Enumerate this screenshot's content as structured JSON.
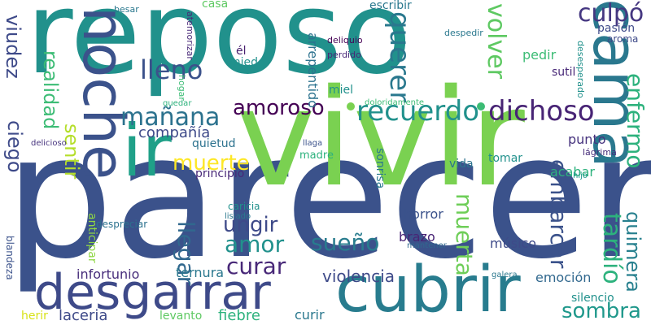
{
  "words": {
    "parecer": {
      "text": "parecer",
      "color": "#3b528b"
    },
    "vivir": {
      "text": "vivir",
      "color": "#7ad151"
    },
    "reposo": {
      "text": "reposo",
      "color": "#21918c"
    },
    "cubrir": {
      "text": "cubrir",
      "color": "#287c8e"
    },
    "cama": {
      "text": "cama",
      "color": "#2a788e"
    },
    "noche": {
      "text": "noche",
      "color": "#3b528b"
    },
    "desgarrar": {
      "text": "desgarrar",
      "color": "#3e4a89"
    },
    "ir": {
      "text": "ir",
      "color": "#1fa088"
    },
    "recuerdo": {
      "text": "recuerdo",
      "color": "#21918c"
    },
    "dichoso": {
      "text": "dichoso",
      "color": "#482475"
    },
    "amoroso": {
      "text": "amoroso",
      "color": "#440154"
    },
    "manana": {
      "text": "mañana",
      "color": "#2c728e"
    },
    "lleno": {
      "text": "lleno",
      "color": "#3b528b"
    },
    "culpo": {
      "text": "culpó",
      "color": "#453781"
    },
    "querer": {
      "text": "querer",
      "color": "#2a788e"
    },
    "volver": {
      "text": "volver",
      "color": "#5ec962"
    },
    "viudez": {
      "text": "viudez",
      "color": "#3e4a89"
    },
    "ciego": {
      "text": "ciego",
      "color": "#3e4a89"
    },
    "realidad": {
      "text": "realidad",
      "color": "#3cbc75"
    },
    "sentir": {
      "text": "sentir",
      "color": "#b5de2b"
    },
    "muerte": {
      "text": "muerte",
      "color": "#fde725"
    },
    "compania": {
      "text": "compañía",
      "color": "#3e4a89"
    },
    "enfermo": {
      "text": "enfermo",
      "color": "#2db27d"
    },
    "tardio": {
      "text": "tardío",
      "color": "#2db27d"
    },
    "embarcar": {
      "text": "embarcar",
      "color": "#3b528b"
    },
    "quimera": {
      "text": "quimera",
      "color": "#27808e"
    },
    "muerta": {
      "text": "muerta",
      "color": "#6ece58"
    },
    "llegar": {
      "text": "llegar",
      "color": "#31688e"
    },
    "ungir": {
      "text": "ungir",
      "color": "#3e4a89"
    },
    "amor": {
      "text": "amor",
      "color": "#21918c"
    },
    "sueno": {
      "text": "sueño",
      "color": "#287c8e"
    },
    "curar": {
      "text": "curar",
      "color": "#482878"
    },
    "sombra": {
      "text": "sombra",
      "color": "#1f988b"
    },
    "violencia": {
      "text": "violencia",
      "color": "#3e4a89"
    },
    "infortunio": {
      "text": "infortunio",
      "color": "#472d7b"
    },
    "ternura": {
      "text": "ternura",
      "color": "#2a788e"
    },
    "laceria": {
      "text": "laceria",
      "color": "#3e4a89"
    },
    "fiebre": {
      "text": "fiebre",
      "color": "#2db27d"
    },
    "curir": {
      "text": "curir",
      "color": "#2a788e"
    },
    "herir": {
      "text": "herir",
      "color": "#d8e219"
    },
    "levanto": {
      "text": "levanto",
      "color": "#5ec962"
    },
    "silencio": {
      "text": "silencio",
      "color": "#21918c"
    },
    "emocion": {
      "text": "emoción",
      "color": "#31688e"
    },
    "musico": {
      "text": "músico",
      "color": "#3e4a89"
    },
    "brazo": {
      "text": "brazo",
      "color": "#482475"
    },
    "horror": {
      "text": "horror",
      "color": "#3b528b"
    },
    "anticipar": {
      "text": "anticipar",
      "color": "#8fd744"
    },
    "despreciar": {
      "text": "despreciar",
      "color": "#2c728e"
    },
    "caricia": {
      "text": "caricia",
      "color": "#21918c"
    },
    "lisiado": {
      "text": "lisiado",
      "color": "#2a788e"
    },
    "mantener": {
      "text": "mantener",
      "color": "#31688e"
    },
    "galera": {
      "text": "galera",
      "color": "#2a788e"
    },
    "blandeza": {
      "text": "blandeza",
      "color": "#3b528b"
    },
    "sonrisa": {
      "text": "sonrisa",
      "color": "#2a788e"
    },
    "vida": {
      "text": "vida",
      "color": "#2c728e"
    },
    "tomar": {
      "text": "tomar",
      "color": "#21918c"
    },
    "acabar": {
      "text": "acabar",
      "color": "#2db27d"
    },
    "lagrima": {
      "text": "lágrima",
      "color": "#472d7b"
    },
    "hijo": {
      "text": "hijo",
      "color": "#1f988b"
    },
    "punto": {
      "text": "punto",
      "color": "#46337e"
    },
    "quietud": {
      "text": "quietud",
      "color": "#2c728e"
    },
    "principio": {
      "text": "principio",
      "color": "#482878"
    },
    "llaga": {
      "text": "llaga",
      "color": "#3b528b"
    },
    "madre": {
      "text": "madre",
      "color": "#2db27d"
    },
    "delicioso": {
      "text": "delicioso",
      "color": "#46337e"
    },
    "quedar": {
      "text": "quedar",
      "color": "#2db27d"
    },
    "hogar": {
      "text": "hogar",
      "color": "#3cbc75"
    },
    "dolor": {
      "text": "doloridamente",
      "color": "#3cbc75"
    },
    "el": {
      "text": "él",
      "color": "#481f70"
    },
    "miedo": {
      "text": "miedo",
      "color": "#21918c"
    },
    "arrepentido": {
      "text": "arrepentido",
      "color": "#2c728e"
    },
    "atemorizar": {
      "text": "atemorizar",
      "color": "#482878"
    },
    "deliquio": {
      "text": "deliquio",
      "color": "#440154"
    },
    "perdido": {
      "text": "perdido",
      "color": "#482878"
    },
    "miel": {
      "text": "miel",
      "color": "#21918c"
    },
    "escribir": {
      "text": "escribir",
      "color": "#2a788e"
    },
    "casa": {
      "text": "casa",
      "color": "#5ec962"
    },
    "besar": {
      "text": "besar",
      "color": "#2a788e"
    },
    "despedir": {
      "text": "despedir",
      "color": "#2a788e"
    },
    "desesperado": {
      "text": "desesperado",
      "color": "#21918c"
    },
    "pasion": {
      "text": "pasión",
      "color": "#3e4a89"
    },
    "aroma": {
      "text": "aroma",
      "color": "#3e4a89"
    },
    "pedir": {
      "text": "pedir",
      "color": "#3cbc75"
    },
    "sutil": {
      "text": "sutil",
      "color": "#482878"
    }
  }
}
